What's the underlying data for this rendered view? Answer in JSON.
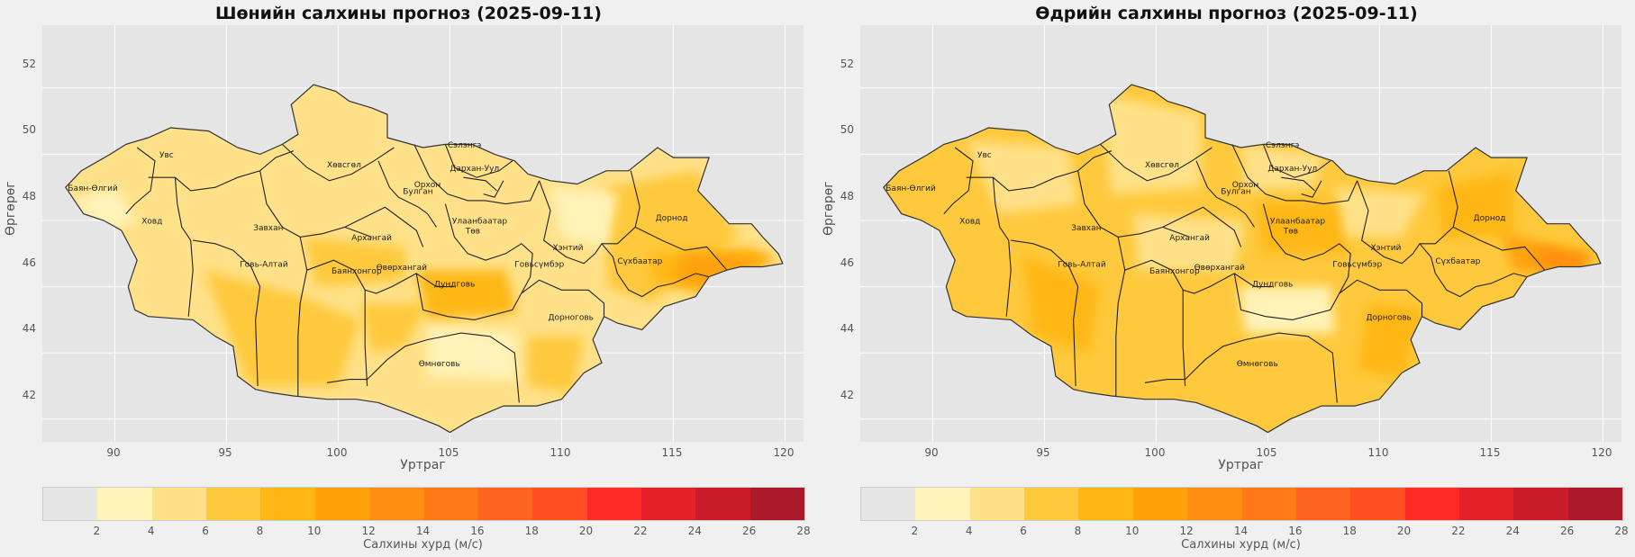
{
  "panels": [
    {
      "title": "Шөнийн салхины прогноз (2025-09-11)"
    },
    {
      "title": "Өдрийн салхины прогноз (2025-09-11)"
    }
  ],
  "axes": {
    "xlabel": "Уртраг",
    "ylabel": "Өргөрөг",
    "xticks": [
      "90",
      "95",
      "100",
      "105",
      "110",
      "115",
      "120"
    ],
    "yticks": [
      "52",
      "50",
      "48",
      "46",
      "44",
      "42"
    ]
  },
  "colorbar": {
    "label": "Салхины хурд (м/с)",
    "ticks": [
      "2",
      "4",
      "6",
      "8",
      "10",
      "12",
      "14",
      "16",
      "18",
      "20",
      "22",
      "24",
      "26",
      "28"
    ],
    "colors": [
      "#e5e5e5",
      "#fff3b8",
      "#ffe189",
      "#ffc93e",
      "#ffb716",
      "#ffa20a",
      "#ff8f10",
      "#ff7a16",
      "#ff6320",
      "#ff4f22",
      "#ff2a24",
      "#e5222a",
      "#c91b2a",
      "#aa1a2a"
    ]
  },
  "aimags": [
    "Увс",
    "Баян-Өлгий",
    "Ховд",
    "Завхан",
    "Говь-Алтай",
    "Хөвсгөл",
    "Архангай",
    "Булган",
    "Орхон",
    "Сэлэнгэ",
    "Дархан-Уул",
    "Улаанбаатар",
    "Төв",
    "Баянхонгор",
    "Өвөрхангай",
    "Дундговь",
    "Говьсүмбэр",
    "Хэнтий",
    "Дорнод",
    "Сүхбаатар",
    "Дорноговь",
    "Өмнөговь"
  ]
}
